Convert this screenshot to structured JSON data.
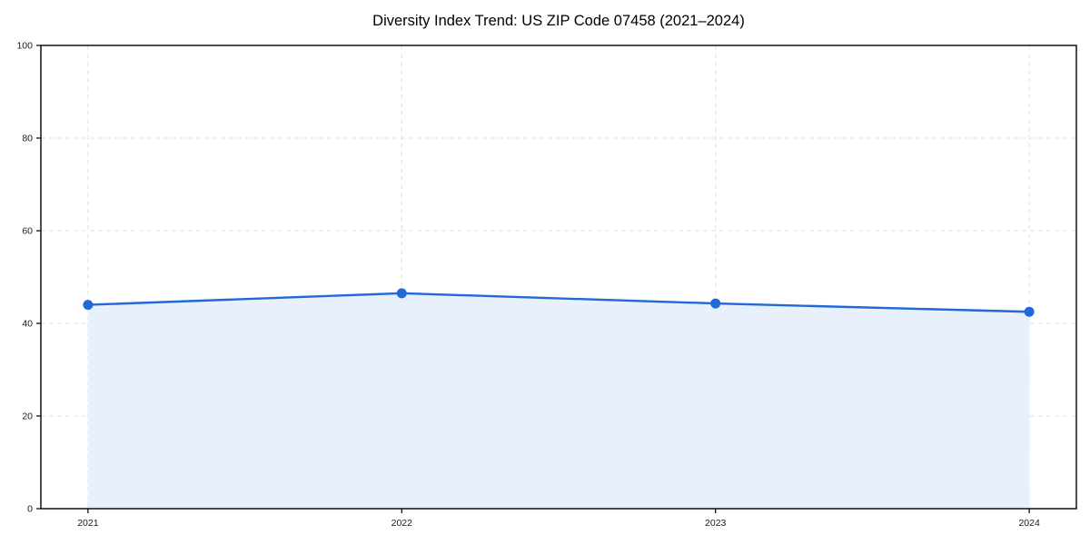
{
  "chart": {
    "title": "Diversity Index Trend: US ZIP Code 07458 (2021–2024)"
  },
  "chart_data": {
    "type": "line",
    "title": "Diversity Index Trend: US ZIP Code 07458 (2021–2024)",
    "x": [
      "2021",
      "2022",
      "2023",
      "2024"
    ],
    "values": [
      44,
      46.5,
      44.3,
      42.5
    ],
    "xlabel": "",
    "ylabel": "",
    "ylim": [
      0,
      100
    ],
    "yticks": [
      0,
      20,
      40,
      60,
      80,
      100
    ],
    "grid": "dashed",
    "legend": "none",
    "area_fill": true,
    "marker": "circle",
    "colors": {
      "line": "#2268d8",
      "marker": "#2268d8",
      "area": "#e8f0fb",
      "grid": "#e0e0e0",
      "spine": "#000000",
      "tick_text": "#1a1a1a",
      "background": "#ffffff"
    }
  }
}
